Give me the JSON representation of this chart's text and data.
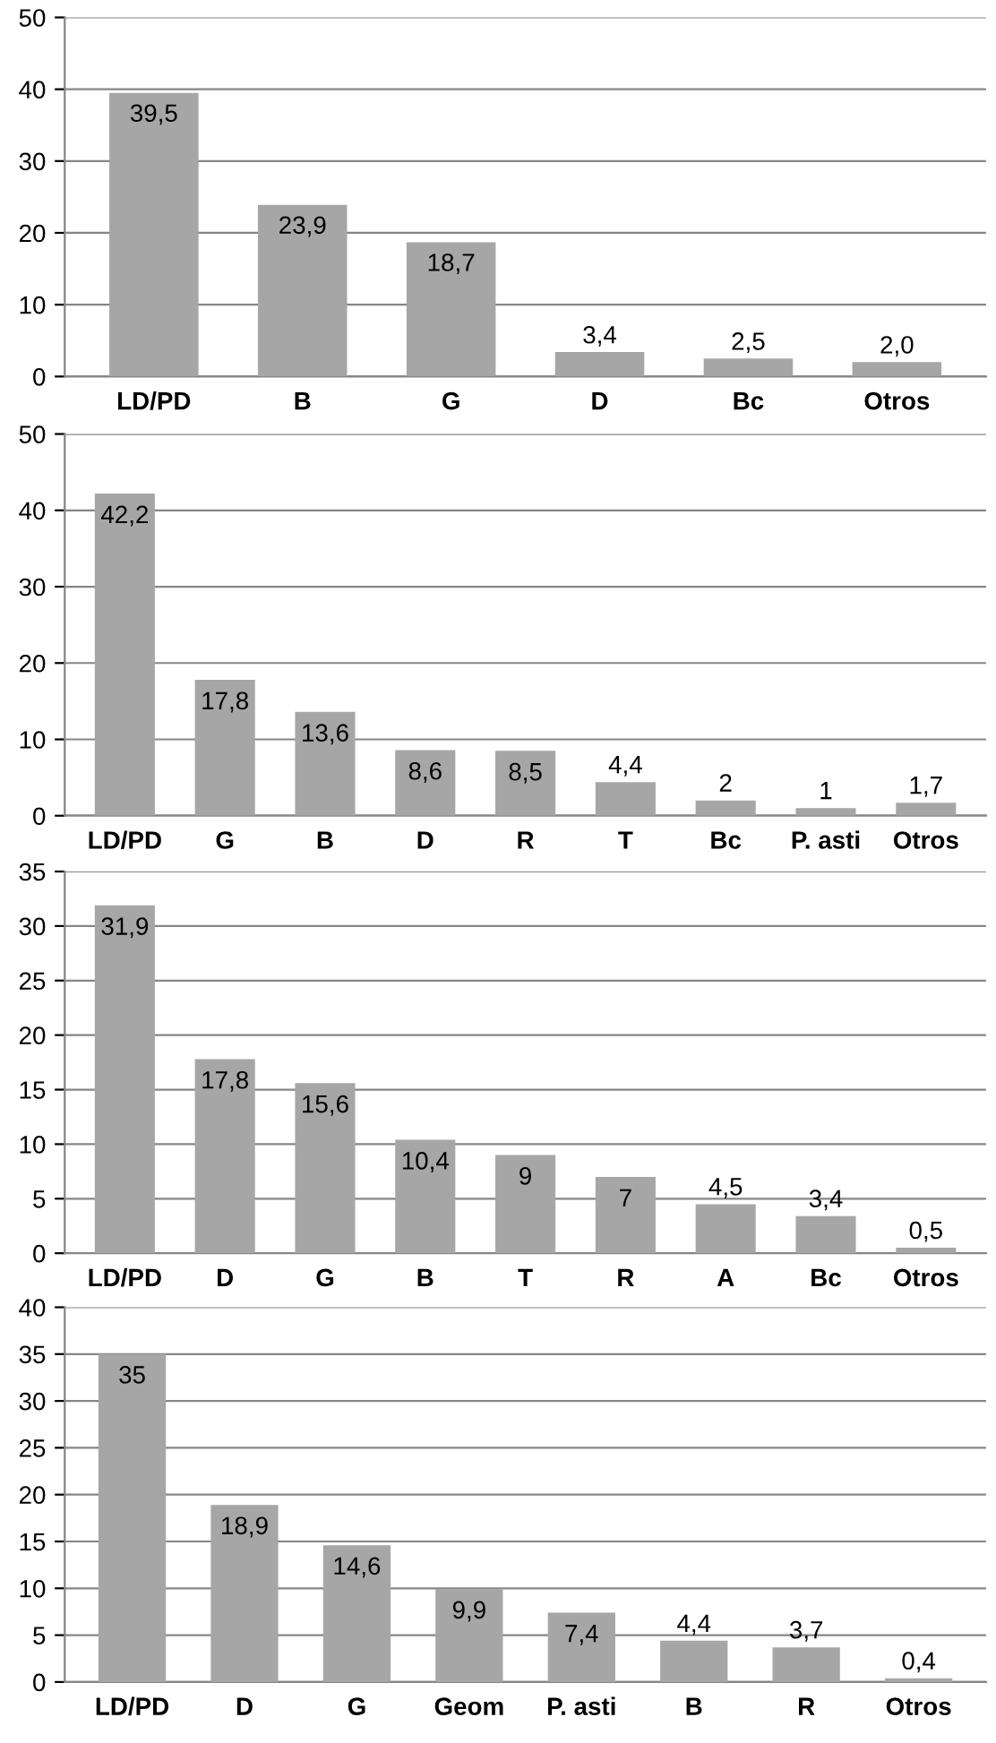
{
  "chart_data": [
    {
      "type": "bar",
      "categories": [
        "LD/PD",
        "B",
        "G",
        "D",
        "Bc",
        "Otros"
      ],
      "values": [
        39.5,
        23.9,
        18.7,
        3.4,
        2.5,
        2.0
      ],
      "value_labels": [
        "39,5",
        "23,9",
        "18,7",
        "3,4",
        "2,5",
        "2,0"
      ],
      "color": "#a6a6a6",
      "ylim": [
        0,
        50
      ],
      "yticks": [
        0,
        10,
        20,
        30,
        40,
        50
      ],
      "grid": "y"
    },
    {
      "type": "bar",
      "categories": [
        "LD/PD",
        "G",
        "B",
        "D",
        "R",
        "T",
        "Bc",
        "P. asti",
        "Otros"
      ],
      "values": [
        42.2,
        17.8,
        13.6,
        8.6,
        8.5,
        4.4,
        2,
        1,
        1.7
      ],
      "value_labels": [
        "42,2",
        "17,8",
        "13,6",
        "8,6",
        "8,5",
        "4,4",
        "2",
        "1",
        "1,7"
      ],
      "color": "#a6a6a6",
      "ylim": [
        0,
        50
      ],
      "yticks": [
        0,
        10,
        20,
        30,
        40,
        50
      ],
      "grid": "y"
    },
    {
      "type": "bar",
      "categories": [
        "LD/PD",
        "D",
        "G",
        "B",
        "T",
        "R",
        "A",
        "Bc",
        "Otros"
      ],
      "values": [
        31.9,
        17.8,
        15.6,
        10.4,
        9,
        7,
        4.5,
        3.4,
        0.5
      ],
      "value_labels": [
        "31,9",
        "17,8",
        "15,6",
        "10,4",
        "9",
        "7",
        "4,5",
        "3,4",
        "0,5"
      ],
      "color": "#a6a6a6",
      "ylim": [
        0,
        35
      ],
      "yticks": [
        0,
        5,
        10,
        15,
        20,
        25,
        30,
        35
      ],
      "grid": "y"
    },
    {
      "type": "bar",
      "categories": [
        "LD/PD",
        "D",
        "G",
        "Geom",
        "P. asti",
        "B",
        "R",
        "Otros"
      ],
      "values": [
        35,
        18.9,
        14.6,
        9.9,
        7.4,
        4.4,
        3.7,
        0.4
      ],
      "value_labels": [
        "35",
        "18,9",
        "14,6",
        "9,9",
        "7,4",
        "4,4",
        "3,7",
        "0,4"
      ],
      "color": "#a6a6a6",
      "ylim": [
        0,
        40
      ],
      "yticks": [
        0,
        5,
        10,
        15,
        20,
        25,
        30,
        35,
        40
      ],
      "grid": "y"
    }
  ]
}
